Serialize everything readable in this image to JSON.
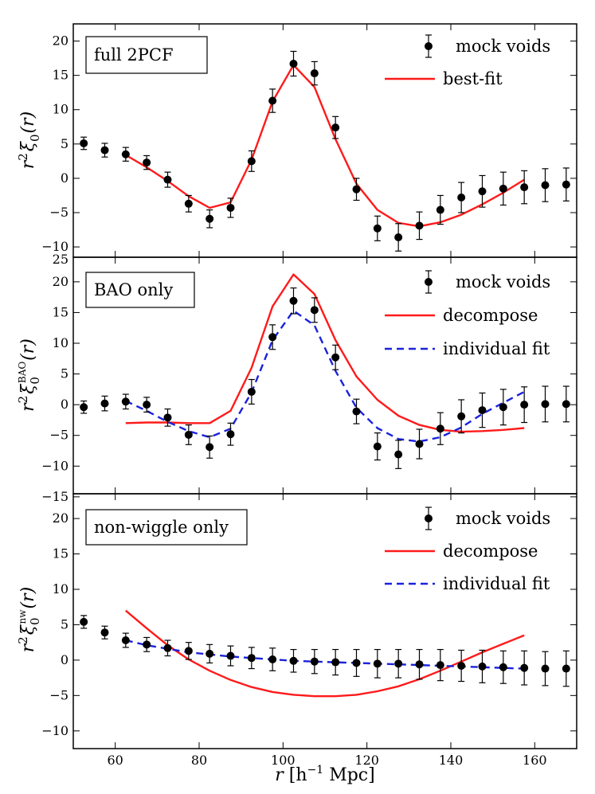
{
  "chart_data": [
    {
      "type": "scatter",
      "panel_label": "full 2PCF",
      "ylabel": {
        "prefix": "r",
        "exp": "2",
        "xi": "ξ",
        "sub": "0",
        "sup": "",
        "arg": "(r)"
      },
      "ylim": [
        -11.5,
        22.5
      ],
      "yticks": [
        -10,
        -5,
        0,
        5,
        10,
        15,
        20
      ],
      "top_tick": "25",
      "legend_position": "top-right",
      "legend": [
        "mock voids",
        "best-fit"
      ],
      "mock_voids": {
        "x": [
          52.5,
          57.5,
          62.5,
          67.5,
          72.5,
          77.5,
          82.5,
          87.5,
          92.5,
          97.5,
          102.5,
          107.5,
          112.5,
          117.5,
          122.5,
          127.5,
          132.5,
          137.5,
          142.5,
          147.5,
          152.5,
          157.5,
          162.5,
          167.5
        ],
        "y": [
          5.1,
          4.1,
          3.5,
          2.3,
          -0.2,
          -3.7,
          -5.9,
          -4.3,
          2.5,
          11.3,
          16.7,
          15.3,
          7.4,
          -1.6,
          -7.3,
          -8.6,
          -6.9,
          -4.6,
          -2.8,
          -1.9,
          -1.5,
          -1.3,
          -1.0,
          -0.9
        ],
        "err": [
          0.9,
          1.0,
          1.0,
          1.0,
          1.1,
          1.2,
          1.3,
          1.4,
          1.5,
          1.7,
          1.8,
          1.7,
          1.6,
          1.6,
          1.8,
          2.0,
          2.0,
          2.1,
          2.2,
          2.3,
          2.4,
          2.4,
          2.4,
          2.4
        ]
      },
      "lines": [
        {
          "name": "best-fit",
          "color": "#ff1a1a",
          "dash": "solid",
          "x": [
            62.5,
            67.5,
            72.5,
            77.5,
            82.5,
            87.5,
            92.5,
            97.5,
            102.5,
            107.5,
            112.5,
            117.5,
            122.5,
            127.5,
            132.5,
            137.5,
            142.5,
            147.5,
            152.5,
            157.5
          ],
          "y": [
            3.4,
            1.6,
            -0.4,
            -2.6,
            -4.3,
            -3.5,
            2.7,
            11.2,
            16.5,
            13.3,
            5.7,
            -0.8,
            -4.6,
            -6.5,
            -7.0,
            -6.4,
            -5.3,
            -3.8,
            -2.1,
            -0.2
          ]
        }
      ]
    },
    {
      "type": "scatter",
      "panel_label": "BAO only",
      "ylabel": {
        "prefix": "r",
        "exp": "2",
        "xi": "ξ",
        "sub": "0",
        "sup": "BAO",
        "arg": "(r)"
      },
      "ylim": [
        -14.5,
        24.0
      ],
      "yticks": [
        -15,
        -10,
        -5,
        0,
        5,
        10,
        15,
        20
      ],
      "top_tick": "",
      "legend_position": "top-right",
      "legend": [
        "mock voids",
        "decompose",
        "individual fit"
      ],
      "mock_voids": {
        "x": [
          52.5,
          57.5,
          62.5,
          67.5,
          72.5,
          77.5,
          82.5,
          87.5,
          92.5,
          97.5,
          102.5,
          107.5,
          112.5,
          117.5,
          122.5,
          127.5,
          132.5,
          137.5,
          142.5,
          147.5,
          152.5,
          157.5,
          162.5,
          167.5
        ],
        "y": [
          -0.4,
          0.2,
          0.5,
          0.0,
          -2.1,
          -4.9,
          -6.9,
          -4.8,
          2.1,
          11.0,
          16.9,
          15.4,
          7.7,
          -1.1,
          -6.8,
          -8.1,
          -6.4,
          -3.9,
          -1.9,
          -0.9,
          -0.4,
          0.0,
          0.1,
          0.1
        ],
        "err": [
          1.0,
          1.2,
          1.2,
          1.2,
          1.4,
          1.6,
          1.8,
          1.8,
          2.0,
          2.0,
          2.1,
          2.0,
          2.0,
          2.0,
          2.2,
          2.3,
          2.4,
          2.6,
          2.7,
          2.8,
          2.9,
          2.9,
          2.9,
          2.9
        ]
      },
      "lines": [
        {
          "name": "decompose",
          "color": "#ff1a1a",
          "dash": "solid",
          "x": [
            62.5,
            67.5,
            72.5,
            77.5,
            82.5,
            87.5,
            92.5,
            97.5,
            102.5,
            107.5,
            112.5,
            117.5,
            122.5,
            127.5,
            132.5,
            137.5,
            142.5,
            147.5,
            152.5,
            157.5
          ],
          "y": [
            -3.0,
            -2.9,
            -2.9,
            -3.0,
            -3.0,
            -1.0,
            6.0,
            16.0,
            21.2,
            18.0,
            10.5,
            4.6,
            0.8,
            -1.8,
            -3.3,
            -4.1,
            -4.4,
            -4.3,
            -4.1,
            -3.8
          ]
        },
        {
          "name": "individual fit",
          "color": "#1a22dd",
          "dash": "dashed",
          "x": [
            62.5,
            67.5,
            72.5,
            77.5,
            82.5,
            87.5,
            92.5,
            97.5,
            102.5,
            107.5,
            112.5,
            117.5,
            122.5,
            127.5,
            132.5,
            137.5,
            142.5,
            147.5,
            152.5,
            157.5
          ],
          "y": [
            0.6,
            -1.0,
            -2.8,
            -4.3,
            -5.3,
            -3.9,
            2.0,
            10.5,
            15.3,
            12.9,
            5.5,
            -0.5,
            -3.8,
            -5.6,
            -6.0,
            -5.3,
            -3.7,
            -1.5,
            0.3,
            2.1
          ]
        }
      ]
    },
    {
      "type": "scatter",
      "panel_label": "non-wiggle only",
      "ylabel": {
        "prefix": "r",
        "exp": "2",
        "xi": "ξ",
        "sub": "0",
        "sup": "nw",
        "arg": "(r)"
      },
      "ylim": [
        -12.5,
        23.5
      ],
      "yticks": [
        -10,
        -5,
        0,
        5,
        10,
        15,
        20
      ],
      "top_tick": "",
      "legend_position": "top-right",
      "legend": [
        "mock voids",
        "decompose",
        "individual fit"
      ],
      "mock_voids": {
        "x": [
          52.5,
          57.5,
          62.5,
          67.5,
          72.5,
          77.5,
          82.5,
          87.5,
          92.5,
          97.5,
          102.5,
          107.5,
          112.5,
          117.5,
          122.5,
          127.5,
          132.5,
          137.5,
          142.5,
          147.5,
          152.5,
          157.5,
          162.5,
          167.5
        ],
        "y": [
          5.4,
          3.9,
          2.8,
          2.2,
          1.7,
          1.3,
          0.9,
          0.6,
          0.3,
          0.1,
          -0.1,
          -0.2,
          -0.3,
          -0.4,
          -0.5,
          -0.5,
          -0.6,
          -0.7,
          -0.8,
          -0.9,
          -1.0,
          -1.1,
          -1.2,
          -1.2
        ],
        "err": [
          0.9,
          0.9,
          1.0,
          1.0,
          1.1,
          1.2,
          1.3,
          1.4,
          1.5,
          1.6,
          1.6,
          1.7,
          1.8,
          1.9,
          2.0,
          2.0,
          2.1,
          2.2,
          2.2,
          2.3,
          2.3,
          2.4,
          2.4,
          2.5
        ]
      },
      "lines": [
        {
          "name": "decompose",
          "color": "#ff1a1a",
          "dash": "solid",
          "x": [
            62.5,
            67.5,
            72.5,
            77.5,
            82.5,
            87.5,
            92.5,
            97.5,
            102.5,
            107.5,
            112.5,
            117.5,
            122.5,
            127.5,
            132.5,
            137.5,
            142.5,
            147.5,
            152.5,
            157.5
          ],
          "y": [
            7.0,
            4.5,
            2.1,
            0.1,
            -1.5,
            -2.8,
            -3.8,
            -4.5,
            -4.9,
            -5.1,
            -5.1,
            -4.9,
            -4.4,
            -3.7,
            -2.7,
            -1.5,
            -0.2,
            1.1,
            2.3,
            3.5
          ]
        },
        {
          "name": "individual fit",
          "color": "#1a22dd",
          "dash": "dashed",
          "x": [
            62.5,
            67.5,
            72.5,
            77.5,
            82.5,
            87.5,
            92.5,
            97.5,
            102.5,
            107.5,
            112.5,
            117.5,
            122.5,
            127.5,
            132.5,
            137.5,
            142.5,
            147.5,
            152.5,
            157.5
          ],
          "y": [
            2.8,
            2.1,
            1.6,
            1.1,
            0.8,
            0.5,
            0.3,
            0.1,
            -0.1,
            -0.2,
            -0.3,
            -0.4,
            -0.5,
            -0.6,
            -0.7,
            -0.8,
            -0.9,
            -1.0,
            -1.1,
            -1.2
          ]
        }
      ]
    }
  ],
  "shared_x": {
    "xlim": [
      50,
      170
    ],
    "xticks": [
      60,
      80,
      100,
      120,
      140,
      160
    ],
    "xlabel": {
      "r": "r",
      "unit": "[h",
      "exp": "−1",
      "mpc": " Mpc]"
    }
  }
}
